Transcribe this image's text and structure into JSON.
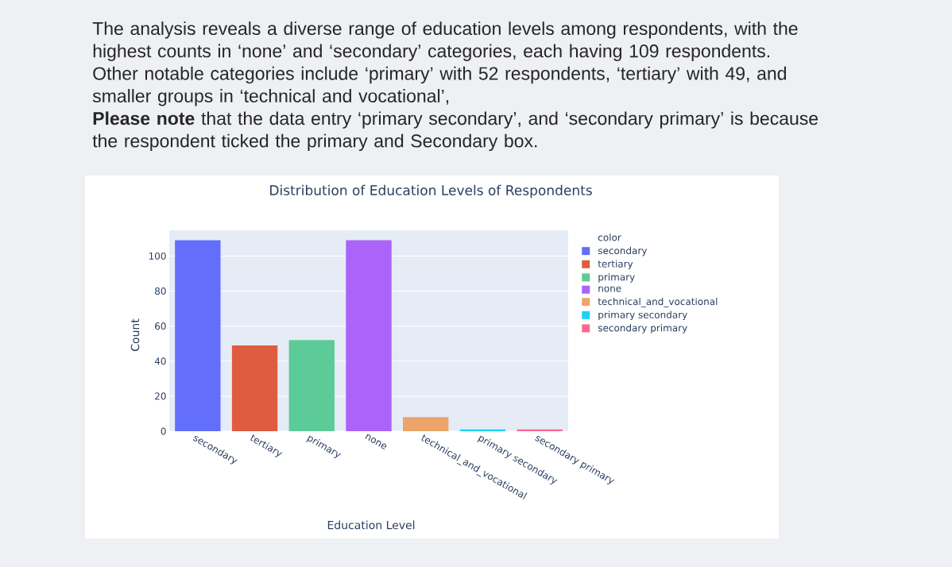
{
  "chart_data": {
    "type": "bar",
    "title": "Distribution of Education Levels of Respondents",
    "annotations": [
      "The analysis reveals a diverse range of education levels among respondents, with the highest counts in ‘none’ and ‘secondary’ categories, each having 109 respondents. Other notable categories include ‘primary’ with 52 respondents, ‘tertiary’ with 49, and smaller groups in ‘technical and vocational’,",
      "**Please note** that the data entry ‘primary secondary’, and ‘secondary primary’ is because the respondent ticked the primary and Secondary box."
    ],
    "xlabel": "Education Level",
    "ylabel": "Count",
    "legend_title": "color",
    "categories": [
      "secondary",
      "tertiary",
      "primary",
      "none",
      "technical_and_vocational",
      "primary secondary",
      "secondary primary"
    ],
    "series": [
      {
        "name": "secondary",
        "color": "#636efa",
        "values": [
          109,
          null,
          null,
          null,
          null,
          null,
          null
        ]
      },
      {
        "name": "tertiary",
        "color": "#e05c40",
        "values": [
          null,
          49,
          null,
          null,
          null,
          null,
          null
        ]
      },
      {
        "name": "primary",
        "color": "#5ccb98",
        "values": [
          null,
          null,
          52,
          null,
          null,
          null,
          null
        ]
      },
      {
        "name": "none",
        "color": "#ab63fa",
        "values": [
          null,
          null,
          null,
          109,
          null,
          null,
          null
        ]
      },
      {
        "name": "technical_and_vocational",
        "color": "#eda46a",
        "values": [
          null,
          null,
          null,
          null,
          8,
          null,
          null
        ]
      },
      {
        "name": "primary secondary",
        "color": "#19d3f3",
        "values": [
          null,
          null,
          null,
          null,
          null,
          1,
          null
        ]
      },
      {
        "name": "secondary primary",
        "color": "#ff6692",
        "values": [
          null,
          null,
          null,
          null,
          null,
          null,
          1
        ]
      }
    ],
    "ylim": [
      0,
      114.7
    ],
    "yticks": [
      0,
      20,
      40,
      60,
      80,
      100
    ],
    "grid": "y",
    "legend": "top right"
  }
}
